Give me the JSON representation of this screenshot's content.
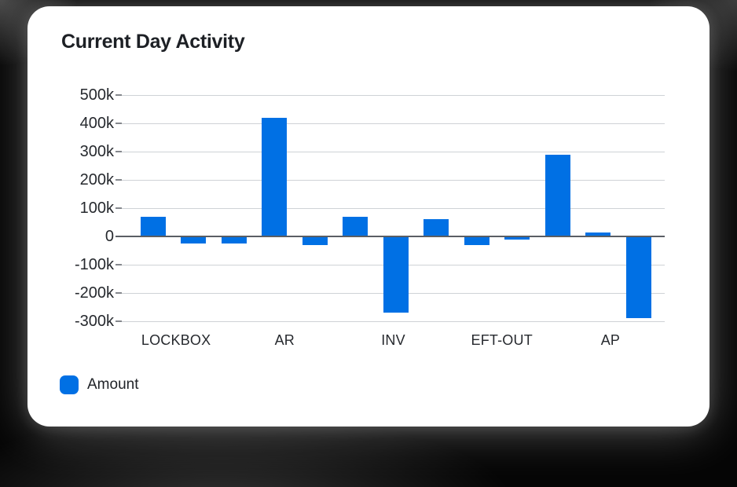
{
  "card": {
    "title": "Current Day Activity"
  },
  "legend": {
    "label": "Amount",
    "swatch_color": "#0070e4"
  },
  "chart_data": {
    "type": "bar",
    "title": "Current Day Activity",
    "series": [
      {
        "name": "Amount",
        "values": [
          70000,
          -25000,
          -25000,
          420000,
          -30000,
          70000,
          -270000,
          60000,
          -30000,
          -10000,
          290000,
          15000,
          -290000
        ]
      }
    ],
    "x_tick_labels": [
      "LOCKBOX",
      "AR",
      "INV",
      "EFT-OUT",
      "AP"
    ],
    "y_ticks": [
      {
        "label": "500k",
        "value": 500000
      },
      {
        "label": "400k",
        "value": 400000
      },
      {
        "label": "300k",
        "value": 300000
      },
      {
        "label": "200k",
        "value": 200000
      },
      {
        "label": "100k",
        "value": 100000
      },
      {
        "label": "0",
        "value": 0
      },
      {
        "label": "-100k",
        "value": -100000
      },
      {
        "label": "-200k",
        "value": -200000
      },
      {
        "label": "-300k",
        "value": -300000
      }
    ],
    "ylim": [
      -300000,
      500000
    ],
    "grid": true,
    "bar_color": "#0070e4",
    "legend_position": "bottom-left",
    "notes": "13 bars evenly spaced under 5 visible x-axis labels; darker horizontal line at zero"
  },
  "colors": {
    "background": "#050505",
    "card": "#ffffff",
    "bar": "#0070e4",
    "gridline": "#cfd2d6",
    "zero_line": "#5a5e64",
    "text": "#26292e",
    "title_text": "#1d2025"
  }
}
